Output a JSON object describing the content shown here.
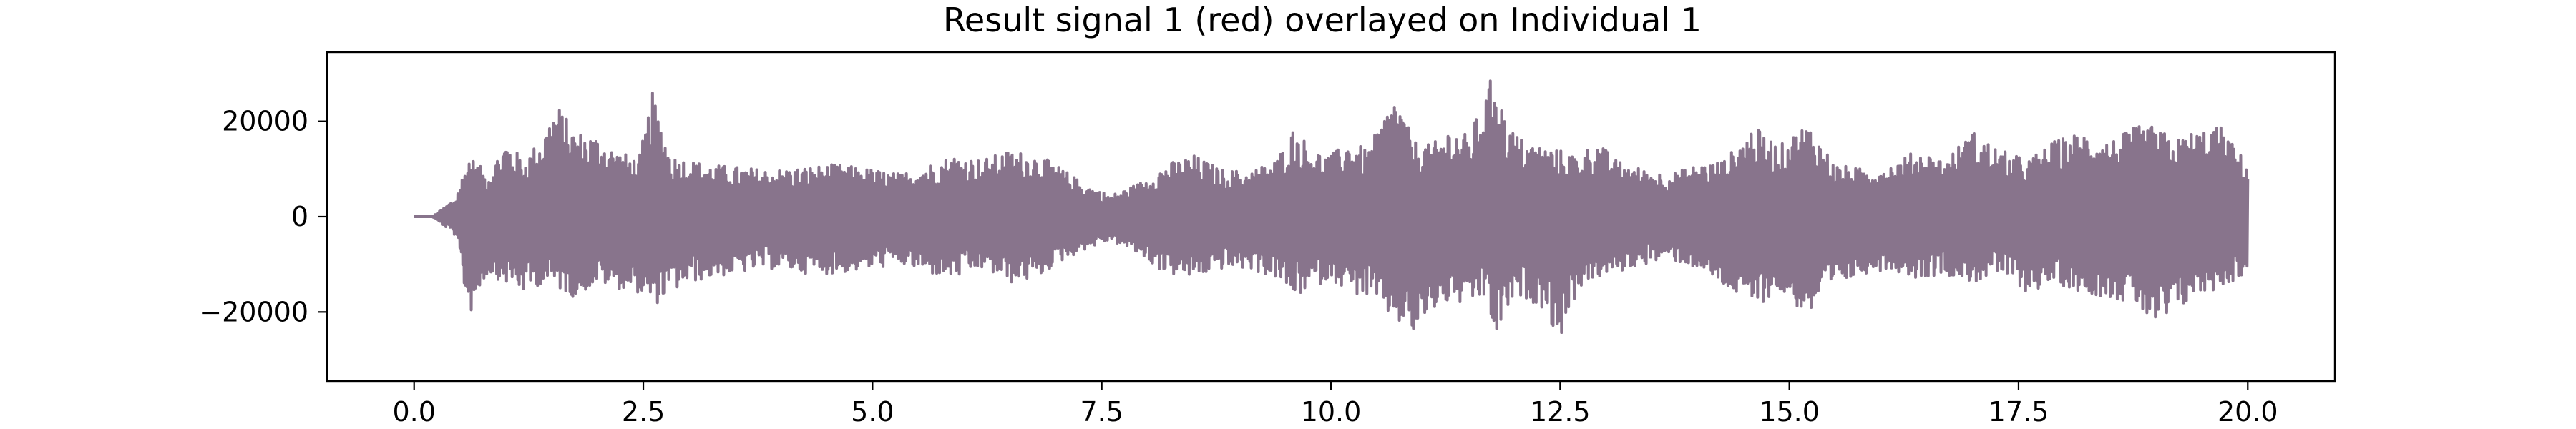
{
  "chart_data": {
    "type": "line",
    "title": "Result signal 1 (red) overlayed on Individual 1",
    "xlabel": "",
    "ylabel": "",
    "xlim": [
      -0.95,
      20.95
    ],
    "ylim": [
      -34500,
      34500
    ],
    "x_ticks": [
      0.0,
      2.5,
      5.0,
      7.5,
      10.0,
      12.5,
      15.0,
      17.5,
      20.0
    ],
    "x_tick_labels": [
      "0.0",
      "2.5",
      "5.0",
      "7.5",
      "10.0",
      "12.5",
      "15.0",
      "17.5",
      "20.0"
    ],
    "y_ticks": [
      20000,
      0,
      -20000
    ],
    "y_tick_labels": [
      "20000",
      "0",
      "−20000"
    ],
    "grid": false,
    "legend": null,
    "series": [
      {
        "color": "#88748c",
        "envelope_x": [
          0.0,
          0.2,
          0.3,
          0.45,
          0.6,
          0.8,
          1.0,
          1.2,
          1.4,
          1.55,
          1.75,
          2.0,
          2.2,
          2.45,
          2.6,
          2.8,
          3.0,
          3.2,
          3.5,
          3.8,
          4.0,
          4.3,
          4.6,
          5.0,
          5.3,
          5.6,
          5.9,
          6.2,
          6.5,
          6.8,
          7.0,
          7.3,
          7.6,
          7.9,
          8.2,
          8.5,
          8.8,
          9.1,
          9.4,
          9.6,
          9.8,
          10.0,
          10.2,
          10.4,
          10.7,
          10.9,
          11.1,
          11.3,
          11.5,
          11.7,
          11.8,
          11.9,
          12.1,
          12.3,
          12.5,
          12.7,
          12.9,
          13.1,
          13.4,
          13.7,
          14.0,
          14.3,
          14.6,
          14.9,
          15.2,
          15.5,
          15.8,
          16.1,
          16.4,
          16.7,
          17.0,
          17.3,
          17.6,
          17.9,
          18.2,
          18.5,
          18.8,
          19.0,
          19.2,
          19.4,
          19.7,
          20.0
        ],
        "envelope_upper": [
          0,
          0,
          1500,
          4000,
          13000,
          9000,
          16000,
          12000,
          17000,
          24000,
          18000,
          17000,
          14000,
          12000,
          26000,
          13000,
          12000,
          11000,
          10500,
          10000,
          10000,
          10500,
          11000,
          10000,
          9000,
          11000,
          13000,
          12000,
          14000,
          13000,
          11000,
          7000,
          4500,
          7000,
          11000,
          13000,
          10000,
          9500,
          12000,
          19000,
          14000,
          13000,
          16000,
          14000,
          26000,
          16000,
          15000,
          19000,
          17000,
          26000,
          33000,
          20000,
          16000,
          15000,
          14000,
          13000,
          16000,
          12000,
          10000,
          9000,
          11000,
          12000,
          19000,
          15000,
          20000,
          11000,
          10000,
          11000,
          14000,
          12000,
          18000,
          14000,
          12000,
          16000,
          18000,
          16000,
          19000,
          19000,
          16000,
          18000,
          19000,
          11000
        ],
        "envelope_lower": [
          0,
          0,
          -1500,
          -4000,
          -21000,
          -12000,
          -14000,
          -16000,
          -14000,
          -15000,
          -17000,
          -14000,
          -15000,
          -16000,
          -19000,
          -16000,
          -14000,
          -13000,
          -12000,
          -11000,
          -11000,
          -12000,
          -12000,
          -11000,
          -10000,
          -12000,
          -13000,
          -11000,
          -14000,
          -13000,
          -10000,
          -7000,
          -5000,
          -8000,
          -12000,
          -13000,
          -11000,
          -11000,
          -13000,
          -17000,
          -15000,
          -13000,
          -16000,
          -17000,
          -22000,
          -25000,
          -20000,
          -18000,
          -19000,
          -17000,
          -27000,
          -20000,
          -17000,
          -19000,
          -26000,
          -15000,
          -13000,
          -12000,
          -10000,
          -9000,
          -11000,
          -15000,
          -19000,
          -16000,
          -21000,
          -15000,
          -12000,
          -11000,
          -13000,
          -12000,
          -14000,
          -12000,
          -16000,
          -14000,
          -16000,
          -17000,
          -19000,
          -24000,
          -21000,
          -17000,
          -15000,
          -12000
        ]
      }
    ]
  }
}
